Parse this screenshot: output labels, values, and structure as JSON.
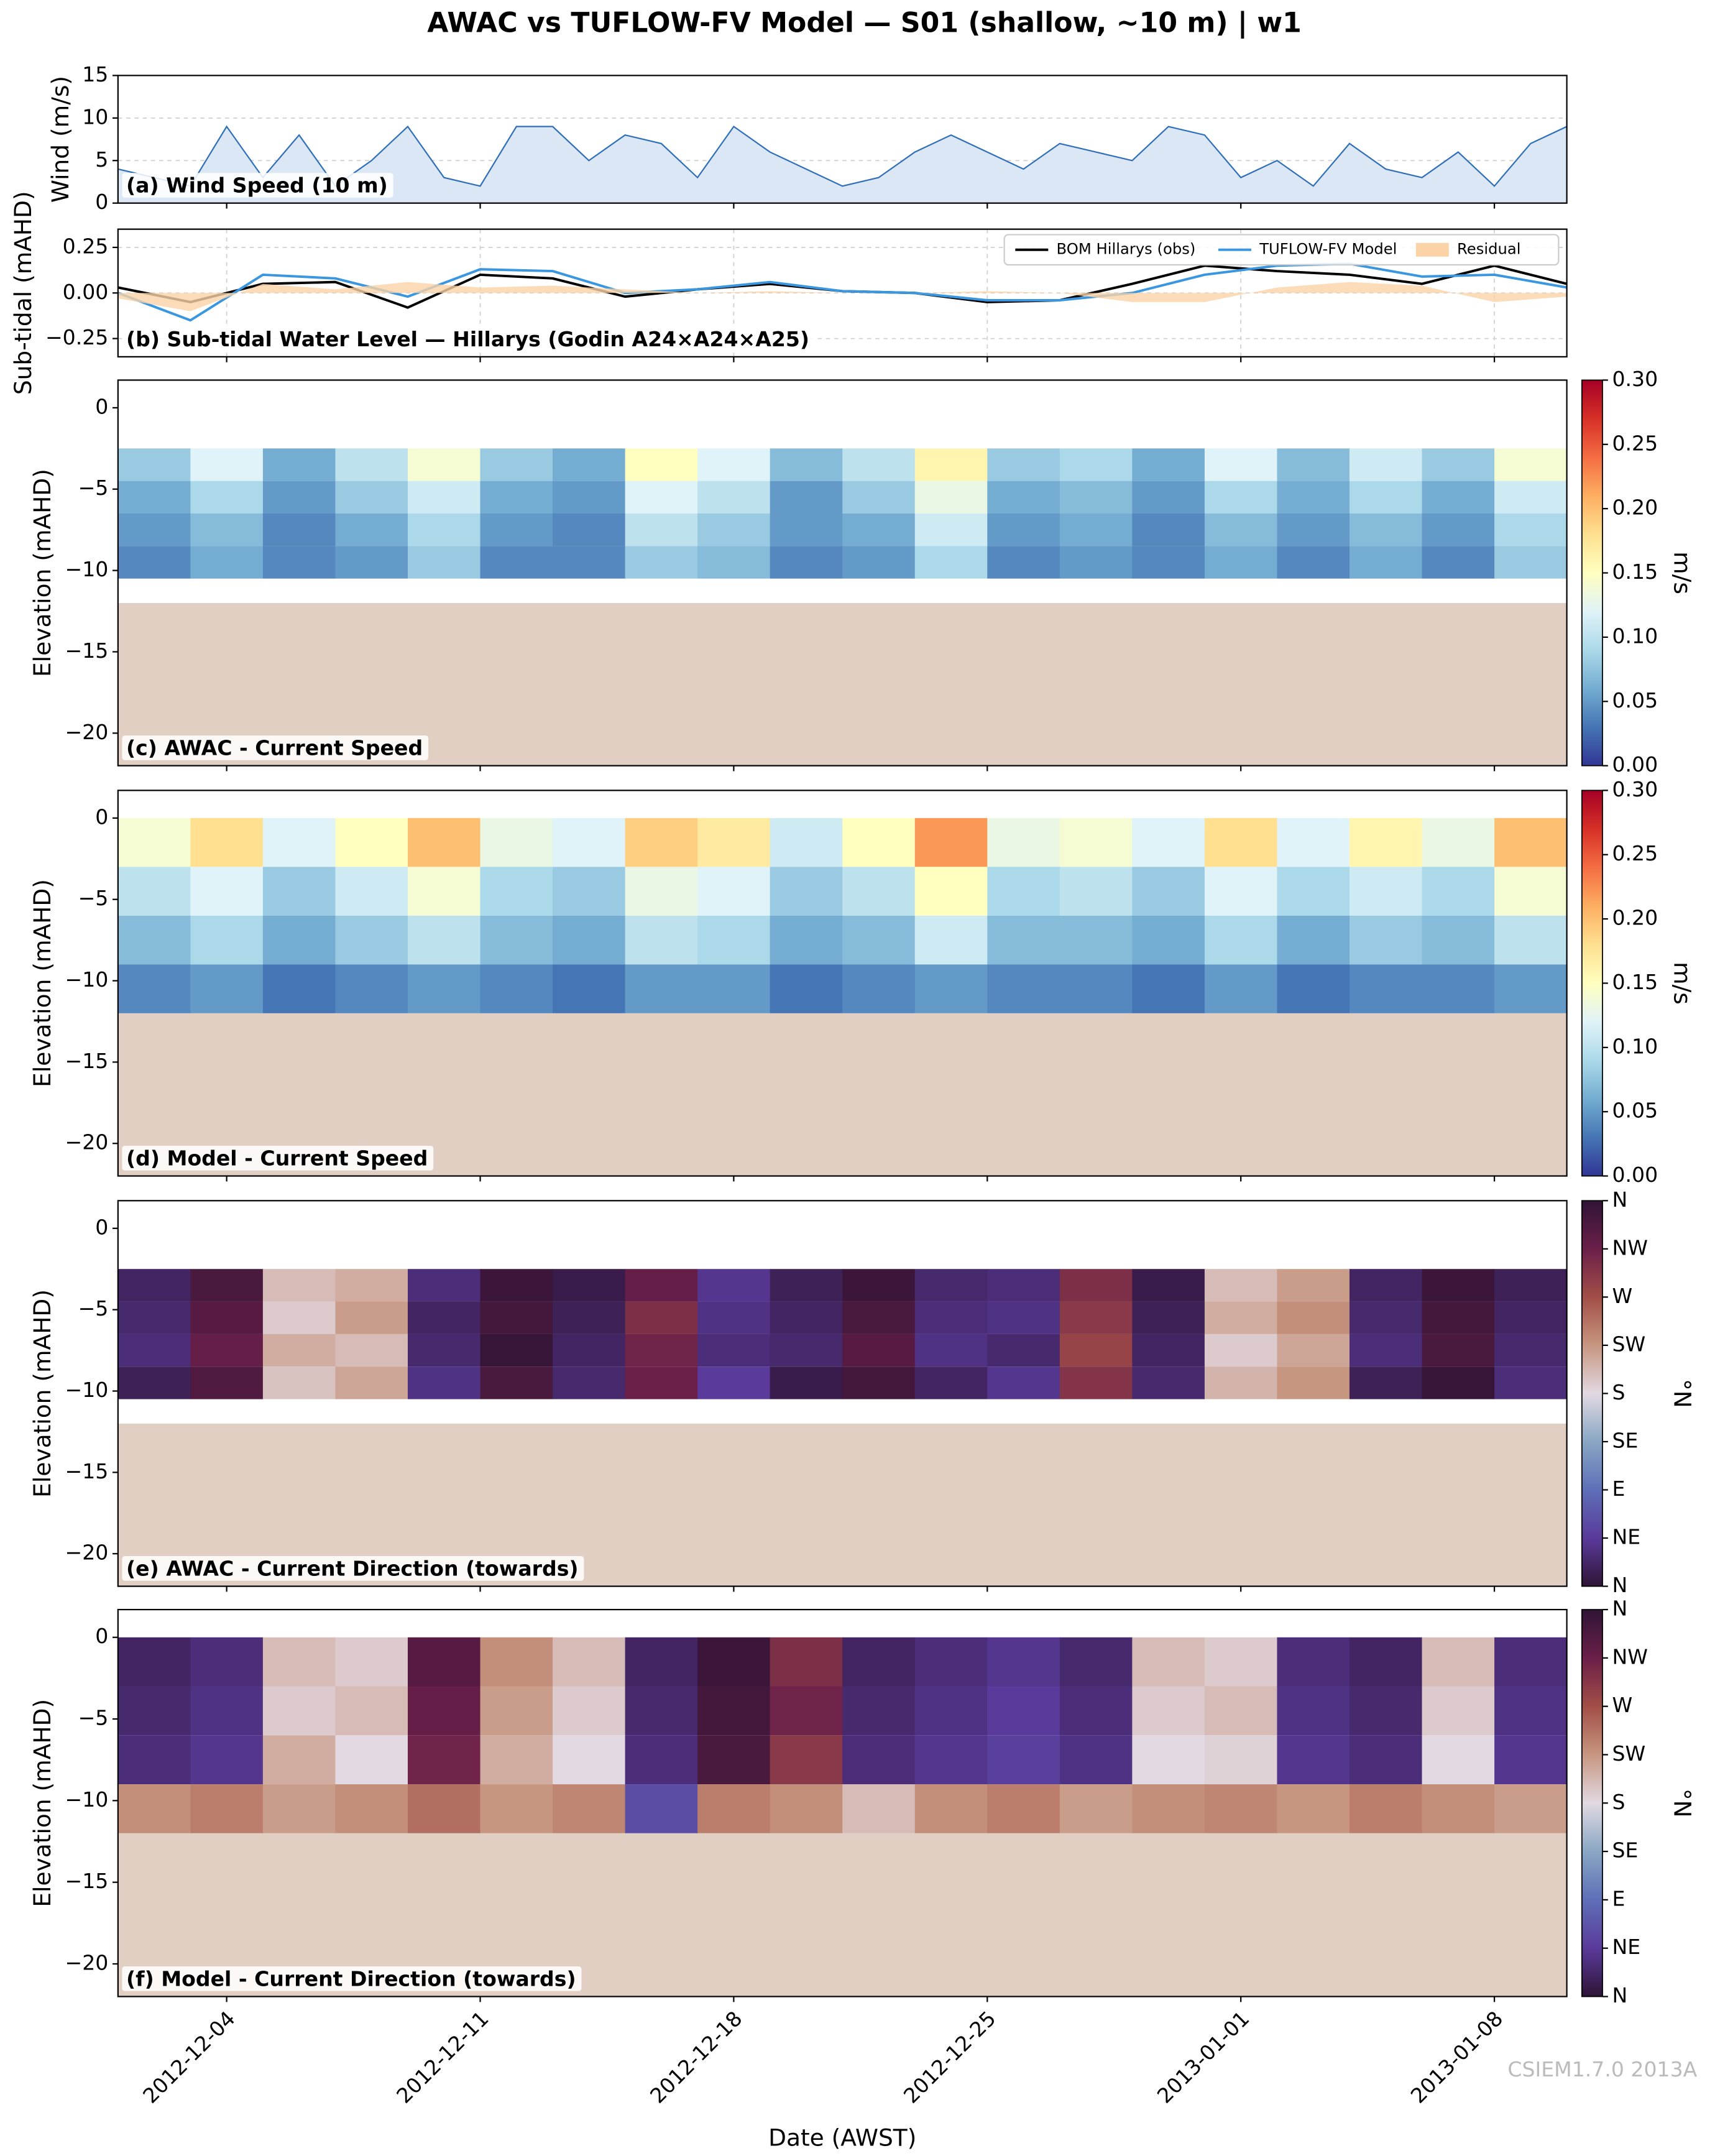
{
  "figure": {
    "title": "AWAC vs TUFLOW-FV Model — S01 (shallow, ~10 m) | w1",
    "xlabel": "Date (AWST)",
    "watermark": "CSIEM1.7.0 2013A",
    "xlim": [
      "2012-12-01",
      "2013-01-10"
    ],
    "xticks": [
      "2012-12-04",
      "2012-12-11",
      "2012-12-18",
      "2012-12-25",
      "2013-01-01",
      "2013-01-08"
    ]
  },
  "chart_data": [
    {
      "type": "area",
      "title": "(a) Wind Speed (10 m)",
      "ylabel": "Wind (m/s)",
      "color": "#2f6fb8",
      "fill_color": "#dce7f5",
      "grid": true,
      "ylim": [
        0,
        15
      ],
      "yticks": [
        0,
        5,
        10,
        15
      ],
      "x": [
        "2012-12-01",
        "2012-12-02",
        "2012-12-03",
        "2012-12-04",
        "2012-12-05",
        "2012-12-06",
        "2012-12-07",
        "2012-12-08",
        "2012-12-09",
        "2012-12-10",
        "2012-12-11",
        "2012-12-12",
        "2012-12-13",
        "2012-12-14",
        "2012-12-15",
        "2012-12-16",
        "2012-12-17",
        "2012-12-18",
        "2012-12-19",
        "2012-12-20",
        "2012-12-21",
        "2012-12-22",
        "2012-12-23",
        "2012-12-24",
        "2012-12-25",
        "2012-12-26",
        "2012-12-27",
        "2012-12-28",
        "2012-12-29",
        "2012-12-30",
        "2012-12-31",
        "2013-01-01",
        "2013-01-02",
        "2013-01-03",
        "2013-01-04",
        "2013-01-05",
        "2013-01-06",
        "2013-01-07",
        "2013-01-08",
        "2013-01-09",
        "2013-01-10"
      ],
      "values": [
        4,
        3,
        2,
        9,
        3,
        8,
        2,
        5,
        9,
        3,
        2,
        9,
        9,
        5,
        8,
        7,
        3,
        9,
        6,
        4,
        2,
        3,
        6,
        8,
        6,
        4,
        7,
        6,
        5,
        9,
        8,
        3,
        5,
        2,
        7,
        4,
        3,
        6,
        2,
        7,
        9
      ]
    },
    {
      "type": "line",
      "title": "(b) Sub-tidal Water Level — Hillarys (Godin A24×A24×A25)",
      "ylabel": "Sub-tidal (mAHD)",
      "grid": true,
      "legend": "upper right",
      "ylim": [
        -0.35,
        0.35
      ],
      "yticks": [
        {
          "value": -0.25,
          "label": "−0.25"
        },
        {
          "value": 0,
          "label": "0.00"
        },
        {
          "value": 0.25,
          "label": "0.25"
        }
      ],
      "x": [
        "2012-12-01",
        "2012-12-03",
        "2012-12-05",
        "2012-12-07",
        "2012-12-09",
        "2012-12-11",
        "2012-12-13",
        "2012-12-15",
        "2012-12-17",
        "2012-12-19",
        "2012-12-21",
        "2012-12-23",
        "2012-12-25",
        "2012-12-27",
        "2012-12-29",
        "2012-12-31",
        "2013-01-02",
        "2013-01-04",
        "2013-01-06",
        "2013-01-08",
        "2013-01-10"
      ],
      "series": [
        {
          "name": "BOM Hillarys (obs)",
          "color": "#000000",
          "values": [
            0.03,
            -0.05,
            0.05,
            0.06,
            -0.08,
            0.1,
            0.08,
            -0.02,
            0.02,
            0.05,
            0.01,
            0.0,
            -0.05,
            -0.04,
            0.05,
            0.15,
            0.12,
            0.1,
            0.05,
            0.15,
            0.05
          ]
        },
        {
          "name": "TUFLOW-FV Model",
          "color": "#3a96de",
          "values": [
            0.0,
            -0.15,
            0.1,
            0.08,
            -0.02,
            0.13,
            0.12,
            0.0,
            0.02,
            0.06,
            0.01,
            0.0,
            -0.04,
            -0.04,
            0.0,
            0.1,
            0.15,
            0.16,
            0.09,
            0.1,
            0.03
          ]
        },
        {
          "name": "Residual",
          "color": "#fbd3a6",
          "style": "area",
          "values": [
            -0.03,
            -0.1,
            0.05,
            0.02,
            0.06,
            0.03,
            0.04,
            0.02,
            0.0,
            0.01,
            0.0,
            0.0,
            0.01,
            0.0,
            -0.05,
            -0.05,
            0.03,
            0.06,
            0.04,
            -0.05,
            -0.02
          ]
        }
      ]
    },
    {
      "type": "heatmap",
      "title": "(c) AWAC - Current Speed",
      "ylabel": "Elevation (mAHD)",
      "ylim": [
        -22,
        1.7
      ],
      "yticks": [
        {
          "value": -20,
          "label": "−20"
        },
        {
          "value": -15,
          "label": "−15"
        },
        {
          "value": -10,
          "label": "−10"
        },
        {
          "value": -5,
          "label": "−5"
        },
        0
      ],
      "bed_level": -12,
      "bed_color": "#e1cfc3",
      "x": [
        "2012-12-01",
        "2012-12-03",
        "2012-12-05",
        "2012-12-07",
        "2012-12-09",
        "2012-12-11",
        "2012-12-13",
        "2012-12-15",
        "2012-12-17",
        "2012-12-19",
        "2012-12-21",
        "2012-12-23",
        "2012-12-25",
        "2012-12-27",
        "2012-12-29",
        "2012-12-31",
        "2013-01-02",
        "2013-01-04",
        "2013-01-06",
        "2013-01-08",
        "2013-01-10"
      ],
      "y": [
        -2.5,
        -4.5,
        -6.5,
        -8.5,
        -10.5
      ],
      "z": [
        [
          0.08,
          0.12,
          0.06,
          0.1,
          0.14,
          0.08,
          0.06,
          0.15,
          0.12,
          0.07,
          0.1,
          0.16,
          0.08,
          0.09,
          0.06,
          0.12,
          0.07,
          0.11,
          0.08,
          0.14
        ],
        [
          0.06,
          0.09,
          0.05,
          0.08,
          0.11,
          0.06,
          0.05,
          0.12,
          0.1,
          0.05,
          0.08,
          0.13,
          0.06,
          0.07,
          0.05,
          0.09,
          0.06,
          0.09,
          0.06,
          0.11
        ],
        [
          0.05,
          0.07,
          0.04,
          0.06,
          0.09,
          0.05,
          0.04,
          0.1,
          0.08,
          0.05,
          0.06,
          0.11,
          0.05,
          0.06,
          0.04,
          0.07,
          0.05,
          0.07,
          0.05,
          0.09
        ],
        [
          0.04,
          0.06,
          0.04,
          0.05,
          0.08,
          0.04,
          0.04,
          0.08,
          0.07,
          0.04,
          0.05,
          0.09,
          0.04,
          0.05,
          0.04,
          0.06,
          0.04,
          0.06,
          0.04,
          0.08
        ]
      ],
      "colorbar": {
        "label": "m/s",
        "clim": [
          0,
          0.3
        ],
        "colors": [
          "#313695",
          "#4575b4",
          "#74add1",
          "#abd9e9",
          "#e0f3f8",
          "#ffffbf",
          "#fee090",
          "#fdae61",
          "#f46d43",
          "#d73027",
          "#a50026"
        ],
        "ticks": [
          {
            "value": 0,
            "label": "0.00"
          },
          {
            "value": 0.05,
            "label": "0.05"
          },
          {
            "value": 0.1,
            "label": "0.10"
          },
          {
            "value": 0.15,
            "label": "0.15"
          },
          {
            "value": 0.2,
            "label": "0.20"
          },
          {
            "value": 0.25,
            "label": "0.25"
          },
          {
            "value": 0.3,
            "label": "0.30"
          }
        ]
      }
    },
    {
      "type": "heatmap",
      "title": "(d) Model - Current Speed",
      "ylabel": "Elevation (mAHD)",
      "ylim": [
        -22,
        1.7
      ],
      "yticks": [
        {
          "value": -20,
          "label": "−20"
        },
        {
          "value": -15,
          "label": "−15"
        },
        {
          "value": -10,
          "label": "−10"
        },
        {
          "value": -5,
          "label": "−5"
        },
        0
      ],
      "bed_level": -12,
      "bed_color": "#e1cfc3",
      "x": [
        "2012-12-01",
        "2012-12-03",
        "2012-12-05",
        "2012-12-07",
        "2012-12-09",
        "2012-12-11",
        "2012-12-13",
        "2012-12-15",
        "2012-12-17",
        "2012-12-19",
        "2012-12-21",
        "2012-12-23",
        "2012-12-25",
        "2012-12-27",
        "2012-12-29",
        "2012-12-31",
        "2013-01-02",
        "2013-01-04",
        "2013-01-06",
        "2013-01-08",
        "2013-01-10"
      ],
      "y": [
        0,
        -3,
        -6,
        -9,
        -12
      ],
      "z": [
        [
          0.14,
          0.18,
          0.12,
          0.15,
          0.2,
          0.13,
          0.12,
          0.19,
          0.17,
          0.11,
          0.15,
          0.22,
          0.13,
          0.14,
          0.12,
          0.18,
          0.12,
          0.16,
          0.13,
          0.2
        ],
        [
          0.1,
          0.12,
          0.08,
          0.11,
          0.14,
          0.09,
          0.08,
          0.13,
          0.12,
          0.08,
          0.1,
          0.15,
          0.09,
          0.1,
          0.08,
          0.12,
          0.09,
          0.11,
          0.09,
          0.14
        ],
        [
          0.07,
          0.09,
          0.06,
          0.08,
          0.1,
          0.07,
          0.06,
          0.1,
          0.09,
          0.06,
          0.07,
          0.11,
          0.07,
          0.07,
          0.06,
          0.09,
          0.06,
          0.08,
          0.07,
          0.1
        ],
        [
          0.04,
          0.05,
          0.03,
          0.04,
          0.05,
          0.04,
          0.03,
          0.05,
          0.05,
          0.03,
          0.04,
          0.05,
          0.04,
          0.04,
          0.03,
          0.05,
          0.03,
          0.04,
          0.04,
          0.05
        ]
      ],
      "colorbar": {
        "label": "m/s",
        "clim": [
          0,
          0.3
        ],
        "colors": [
          "#313695",
          "#4575b4",
          "#74add1",
          "#abd9e9",
          "#e0f3f8",
          "#ffffbf",
          "#fee090",
          "#fdae61",
          "#f46d43",
          "#d73027",
          "#a50026"
        ],
        "ticks": [
          {
            "value": 0,
            "label": "0.00"
          },
          {
            "value": 0.05,
            "label": "0.05"
          },
          {
            "value": 0.1,
            "label": "0.10"
          },
          {
            "value": 0.15,
            "label": "0.15"
          },
          {
            "value": 0.2,
            "label": "0.20"
          },
          {
            "value": 0.25,
            "label": "0.25"
          },
          {
            "value": 0.3,
            "label": "0.30"
          }
        ]
      }
    },
    {
      "type": "heatmap",
      "title": "(e) AWAC - Current Direction (towards)",
      "ylabel": "Elevation (mAHD)",
      "ylim": [
        -22,
        1.7
      ],
      "yticks": [
        {
          "value": -20,
          "label": "−20"
        },
        {
          "value": -15,
          "label": "−15"
        },
        {
          "value": -10,
          "label": "−10"
        },
        {
          "value": -5,
          "label": "−5"
        },
        0
      ],
      "bed_level": -12,
      "bed_color": "#e1cfc3",
      "x": [
        "2012-12-01",
        "2012-12-03",
        "2012-12-05",
        "2012-12-07",
        "2012-12-09",
        "2012-12-11",
        "2012-12-13",
        "2012-12-15",
        "2012-12-17",
        "2012-12-19",
        "2012-12-21",
        "2012-12-23",
        "2012-12-25",
        "2012-12-27",
        "2012-12-29",
        "2012-12-31",
        "2013-01-02",
        "2013-01-04",
        "2013-01-06",
        "2013-01-08",
        "2013-01-10"
      ],
      "y": [
        -2.5,
        -4.5,
        -6.5,
        -8.5,
        -10.5
      ],
      "z": [
        [
          20,
          340,
          200,
          210,
          30,
          350,
          10,
          320,
          40,
          15,
          350,
          25,
          30,
          300,
          10,
          200,
          220,
          20,
          350,
          15
        ],
        [
          25,
          330,
          190,
          220,
          20,
          345,
          15,
          300,
          35,
          20,
          340,
          30,
          35,
          290,
          15,
          210,
          230,
          25,
          345,
          20
        ],
        [
          30,
          320,
          210,
          200,
          25,
          355,
          20,
          310,
          30,
          25,
          330,
          35,
          25,
          280,
          20,
          190,
          215,
          30,
          340,
          25
        ],
        [
          15,
          335,
          195,
          215,
          35,
          340,
          25,
          315,
          45,
          10,
          345,
          20,
          40,
          295,
          25,
          205,
          225,
          15,
          355,
          30
        ]
      ],
      "colorbar": {
        "label": "°N",
        "clim": [
          0,
          360
        ],
        "colors": [
          "#2f1436",
          "#5a3a9a",
          "#5e6fb8",
          "#89a7c4",
          "#e2d9e2",
          "#c79680",
          "#a24e47",
          "#6b1f49",
          "#2f1436"
        ],
        "ticks": [
          {
            "value": 0,
            "label": "N"
          },
          {
            "value": 45,
            "label": "NE"
          },
          {
            "value": 90,
            "label": "E"
          },
          {
            "value": 135,
            "label": "SE"
          },
          {
            "value": 180,
            "label": "S"
          },
          {
            "value": 225,
            "label": "SW"
          },
          {
            "value": 270,
            "label": "W"
          },
          {
            "value": 315,
            "label": "NW"
          },
          {
            "value": 360,
            "label": "N"
          }
        ]
      }
    },
    {
      "type": "heatmap",
      "title": "(f) Model - Current Direction (towards)",
      "ylabel": "Elevation (mAHD)",
      "ylim": [
        -22,
        1.7
      ],
      "yticks": [
        {
          "value": -20,
          "label": "−20"
        },
        {
          "value": -15,
          "label": "−15"
        },
        {
          "value": -10,
          "label": "−10"
        },
        {
          "value": -5,
          "label": "−5"
        },
        0
      ],
      "bed_level": -12,
      "bed_color": "#e1cfc3",
      "x": [
        "2012-12-01",
        "2012-12-03",
        "2012-12-05",
        "2012-12-07",
        "2012-12-09",
        "2012-12-11",
        "2012-12-13",
        "2012-12-15",
        "2012-12-17",
        "2012-12-19",
        "2012-12-21",
        "2012-12-23",
        "2012-12-25",
        "2012-12-27",
        "2012-12-29",
        "2012-12-31",
        "2013-01-02",
        "2013-01-04",
        "2013-01-06",
        "2013-01-08",
        "2013-01-10"
      ],
      "y": [
        0,
        -3,
        -6,
        -9,
        -12
      ],
      "z": [
        [
          20,
          30,
          200,
          190,
          330,
          230,
          200,
          20,
          350,
          300,
          20,
          30,
          40,
          25,
          200,
          190,
          30,
          20,
          200,
          30
        ],
        [
          25,
          35,
          190,
          200,
          320,
          220,
          190,
          25,
          345,
          310,
          25,
          35,
          45,
          30,
          190,
          200,
          35,
          25,
          190,
          35
        ],
        [
          30,
          40,
          210,
          180,
          310,
          210,
          180,
          30,
          340,
          290,
          30,
          40,
          50,
          35,
          180,
          185,
          40,
          30,
          180,
          40
        ],
        [
          230,
          240,
          220,
          230,
          250,
          225,
          235,
          60,
          240,
          230,
          200,
          230,
          240,
          220,
          230,
          235,
          225,
          240,
          230,
          220
        ]
      ],
      "colorbar": {
        "label": "°N",
        "clim": [
          0,
          360
        ],
        "colors": [
          "#2f1436",
          "#5a3a9a",
          "#5e6fb8",
          "#89a7c4",
          "#e2d9e2",
          "#c79680",
          "#a24e47",
          "#6b1f49",
          "#2f1436"
        ],
        "ticks": [
          {
            "value": 0,
            "label": "N"
          },
          {
            "value": 45,
            "label": "NE"
          },
          {
            "value": 90,
            "label": "E"
          },
          {
            "value": 135,
            "label": "SE"
          },
          {
            "value": 180,
            "label": "S"
          },
          {
            "value": 225,
            "label": "SW"
          },
          {
            "value": 270,
            "label": "W"
          },
          {
            "value": 315,
            "label": "NW"
          },
          {
            "value": 360,
            "label": "N"
          }
        ]
      }
    }
  ]
}
